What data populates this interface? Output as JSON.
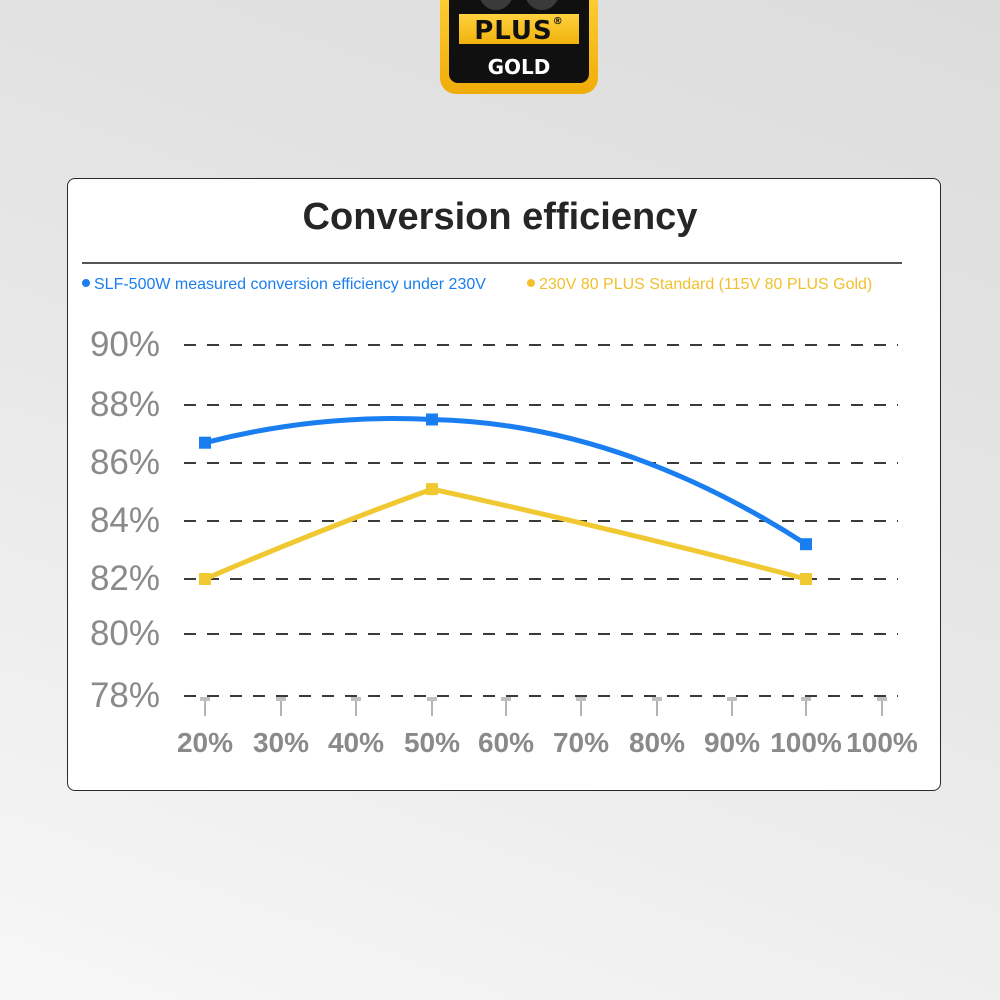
{
  "badge": {
    "plus_text": "PLUS",
    "reg_mark": "®",
    "grade_text": "GOLD"
  },
  "chart_data": {
    "type": "line",
    "title": "Conversion efficiency",
    "categories": [
      "20%",
      "30%",
      "40%",
      "50%",
      "60%",
      "70%",
      "80%",
      "90%",
      "100%",
      "100%"
    ],
    "yticks": [
      "90%",
      "88%",
      "86%",
      "84%",
      "82%",
      "80%",
      "78%"
    ],
    "ytick_values": [
      90,
      88,
      86,
      84,
      82,
      80,
      78
    ],
    "ylim": [
      78,
      90
    ],
    "grid": "dashed horizontal",
    "legend_position": "top",
    "series": [
      {
        "name": "SLF-500W measured conversion efficiency under 230V",
        "color": "#1a7ef0",
        "points": [
          {
            "x": "20%",
            "y": 86.7
          },
          {
            "x": "50%",
            "y": 87.5
          },
          {
            "x": "100%",
            "y": 83.2
          }
        ]
      },
      {
        "name": "230V 80 PLUS Standard (115V 80 PLUS Gold)",
        "color": "#f0c832",
        "points": [
          {
            "x": "20%",
            "y": 82.0
          },
          {
            "x": "50%",
            "y": 85.1
          },
          {
            "x": "100%",
            "y": 82.0
          }
        ]
      }
    ],
    "colors": {
      "ytick": "#8a8a8a",
      "xtick": "#8a8a8a",
      "grid": "#3a3a3a"
    }
  }
}
